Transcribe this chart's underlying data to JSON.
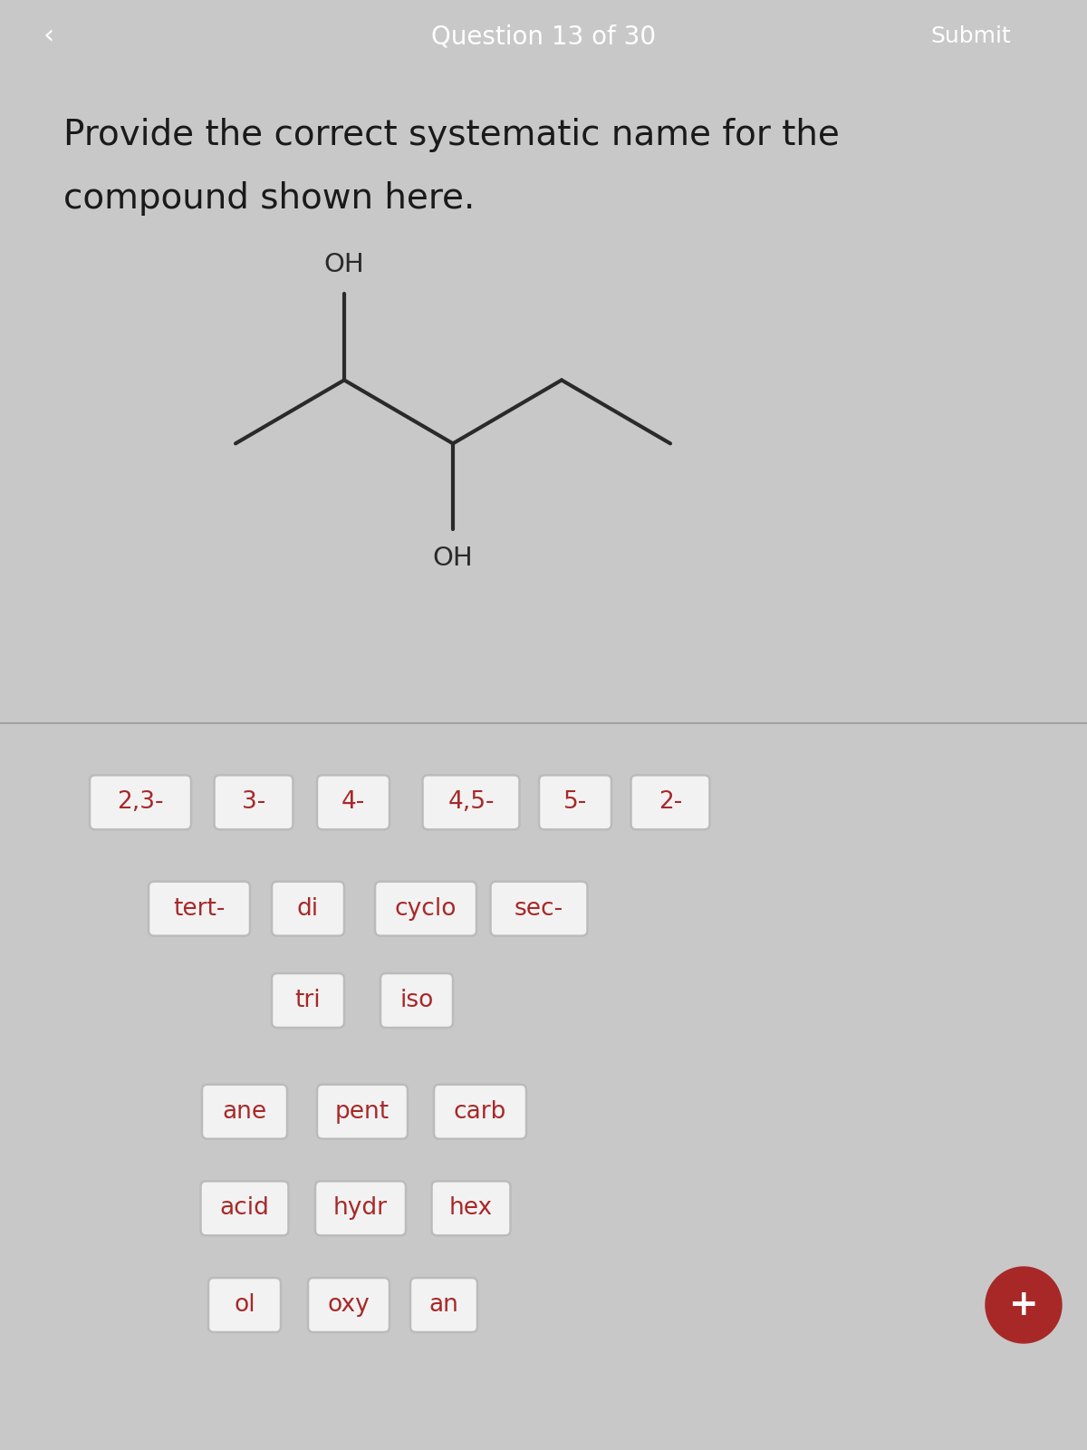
{
  "header_bg_color": "#a82828",
  "header_text_color": "#ffffff",
  "header_text": "Question 13 of 30",
  "header_submit": "Submit",
  "header_back": "‹",
  "question_text_line1": "Provide the correct systematic name for the",
  "question_text_line2": "compound shown here.",
  "question_text_color": "#1a1a1a",
  "body_bg_color": "#c8c8c8",
  "upper_bg_color": "#e0dede",
  "molecule_line_color": "#2a2a2a",
  "oh_label_color": "#2a2a2a",
  "buttons_row1": [
    "2,3-",
    "3-",
    "4-",
    "4,5-",
    "5-",
    "2-"
  ],
  "buttons_row2": [
    "tert-",
    "di",
    "cyclo",
    "sec-"
  ],
  "buttons_row3": [
    "tri",
    "iso"
  ],
  "buttons_row4": [
    "ane",
    "pent",
    "carb"
  ],
  "buttons_row5": [
    "acid",
    "hydr",
    "hex"
  ],
  "buttons_row6": [
    "ol",
    "oxy",
    "an"
  ],
  "button_bg": "#f2f2f2",
  "button_text_color": "#a82828",
  "button_border_color": "#bbbbbb",
  "plus_button_color": "#a82828",
  "plus_button_text": "+"
}
